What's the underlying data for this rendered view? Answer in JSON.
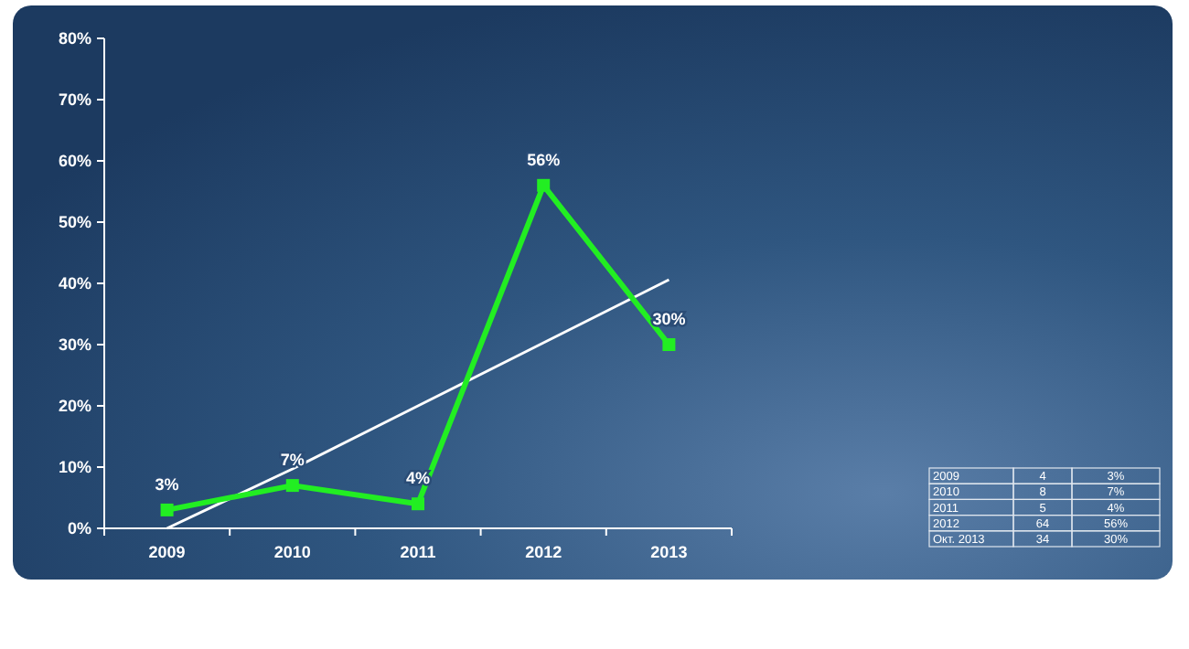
{
  "chart_data": {
    "type": "line",
    "categories": [
      "2009",
      "2010",
      "2011",
      "2012",
      "2013"
    ],
    "series": [
      {
        "color": "#22ee22",
        "values": [
          3,
          7,
          4,
          56,
          30
        ],
        "marker": "square",
        "value_labels": [
          "3%",
          "7%",
          "4%",
          "56%",
          "30%"
        ]
      },
      {
        "color": "#ffffff",
        "values": [
          0,
          9.7,
          20,
          30.3,
          40.6
        ],
        "marker": "none"
      }
    ],
    "ylim": [
      0,
      80
    ],
    "yticks": [
      {
        "value": 0,
        "label": "0%"
      },
      {
        "value": 10,
        "label": "10%"
      },
      {
        "value": 20,
        "label": "20%"
      },
      {
        "value": 30,
        "label": "30%"
      },
      {
        "value": 40,
        "label": "40%"
      },
      {
        "value": 50,
        "label": "50%"
      },
      {
        "value": 60,
        "label": "60%"
      },
      {
        "value": 70,
        "label": "70%"
      },
      {
        "value": 80,
        "label": "80%"
      }
    ],
    "grid": false,
    "annotations": [
      "2009",
      "4",
      "3%",
      "2010",
      "8",
      "7%",
      "2011",
      "5",
      "4%",
      "2012",
      "64",
      "56%",
      "Окт. 2013",
      "34",
      "30%"
    ]
  }
}
